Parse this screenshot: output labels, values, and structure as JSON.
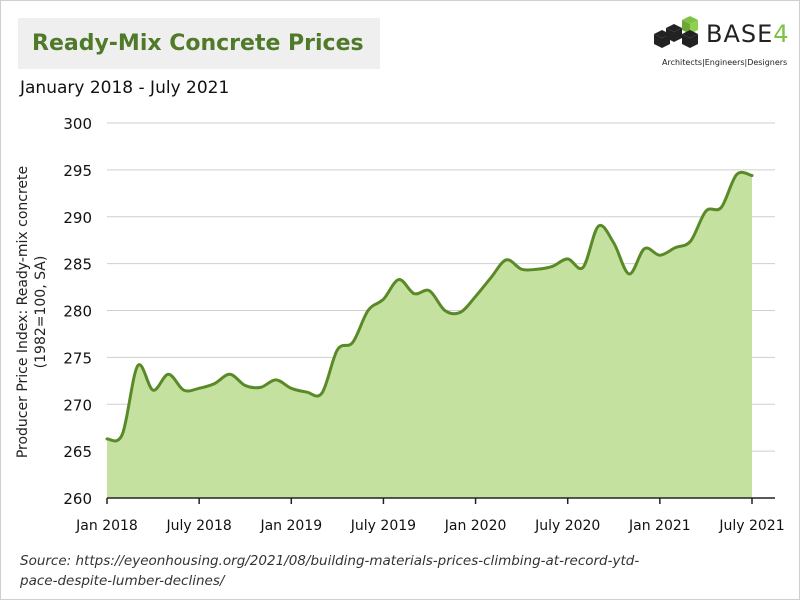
{
  "header": {
    "title": "Ready-Mix Concrete Prices",
    "subtitle": "January 2018 - July 2021"
  },
  "logo": {
    "icon": "base4-cube-logo",
    "name": "BASE",
    "number": "4",
    "tagline": "Architects|Engineers|Designers"
  },
  "footer": {
    "source": "Source: https://eyeonhousing.org/2021/08/building-materials-prices-climbing-at-record-ytd-pace-despite-lumber-declines/"
  },
  "colors": {
    "title": "#4f7a2a",
    "line": "#5a8a28",
    "fill": "#c5e1a0",
    "grid": "#cfcfcf",
    "title_box": "#efefef",
    "logo_accent": "#7dc242"
  },
  "chart_data": {
    "type": "area",
    "title": "Ready-Mix Concrete Prices",
    "subtitle": "January 2018 - July 2021",
    "xlabel": "",
    "ylabel": "Producer Price Index: Ready-mix concrete (1982=100, SA)",
    "ylim": [
      260,
      300
    ],
    "yticks": [
      260,
      265,
      270,
      275,
      280,
      285,
      290,
      295,
      300
    ],
    "xticks": [
      "Jan 2018",
      "July 2018",
      "Jan 2019",
      "July 2019",
      "Jan 2020",
      "July 2020",
      "Jan 2021",
      "July 2021"
    ],
    "grid": true,
    "legend": "none",
    "x": [
      "2018-01",
      "2018-02",
      "2018-03",
      "2018-04",
      "2018-05",
      "2018-06",
      "2018-07",
      "2018-08",
      "2018-09",
      "2018-10",
      "2018-11",
      "2018-12",
      "2019-01",
      "2019-02",
      "2019-03",
      "2019-04",
      "2019-05",
      "2019-06",
      "2019-07",
      "2019-08",
      "2019-09",
      "2019-10",
      "2019-11",
      "2019-12",
      "2020-01",
      "2020-02",
      "2020-03",
      "2020-04",
      "2020-05",
      "2020-06",
      "2020-07",
      "2020-08",
      "2020-09",
      "2020-10",
      "2020-11",
      "2020-12",
      "2021-01",
      "2021-02",
      "2021-03",
      "2021-04",
      "2021-05",
      "2021-06",
      "2021-07"
    ],
    "series": [
      {
        "values": [
          266.3,
          266.8,
          274.1,
          271.5,
          273.2,
          271.5,
          271.7,
          272.2,
          273.2,
          272.0,
          271.8,
          272.6,
          271.7,
          271.3,
          271.2,
          275.8,
          276.6,
          280.0,
          281.2,
          283.3,
          281.8,
          282.1,
          280.0,
          279.8,
          281.5,
          283.5,
          285.4,
          284.4,
          284.4,
          284.7,
          285.5,
          284.6,
          289.0,
          287.2,
          283.9,
          286.6,
          285.9,
          286.7,
          287.4,
          290.6,
          291.0,
          294.5,
          294.4
        ]
      }
    ]
  }
}
